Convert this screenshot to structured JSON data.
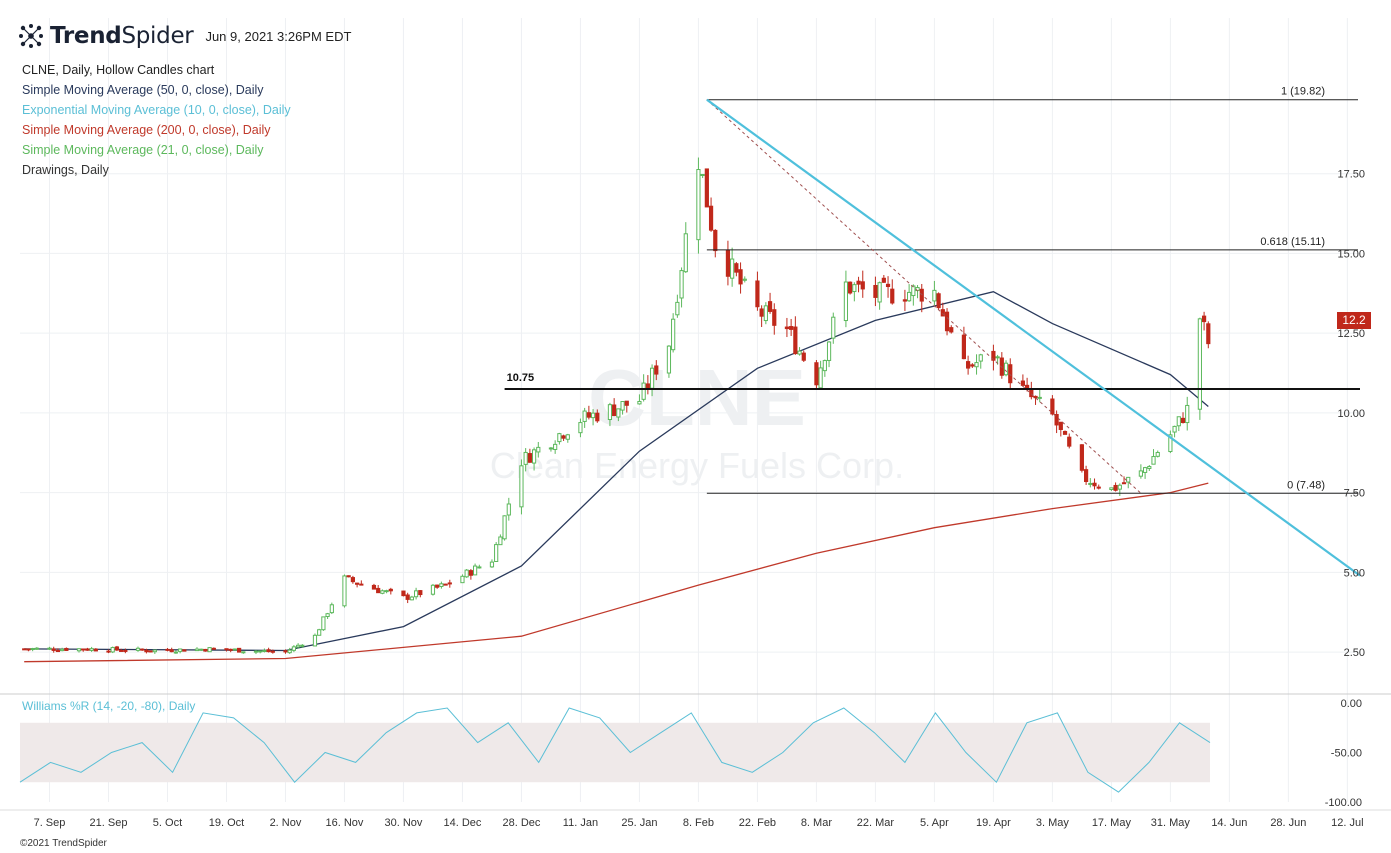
{
  "header": {
    "brand_bold": "Trend",
    "brand_light": "Spider",
    "datestamp": "Jun 9, 2021 3:26PM EDT"
  },
  "legend": [
    {
      "text": "CLNE, Daily, Hollow Candles chart",
      "color": "#222222"
    },
    {
      "text": "Simple Moving Average (50, 0, close), Daily",
      "color": "#2a3a5c"
    },
    {
      "text": "Exponential Moving Average (10, 0, close), Daily",
      "color": "#5bbfd6"
    },
    {
      "text": "Simple Moving Average (200, 0, close), Daily",
      "color": "#c0392b"
    },
    {
      "text": "Simple Moving Average (21, 0, close), Daily",
      "color": "#5cb85c"
    },
    {
      "text": "Drawings, Daily",
      "color": "#333333"
    }
  ],
  "watermark": {
    "ticker": "CLNE",
    "company": "Clean Energy Fuels Corp."
  },
  "price_badge": "12.2",
  "indicator_label": "Williams %R (14, -20, -80), Daily",
  "copyright": "©2021 TrendSpider",
  "colors": {
    "up": "#5cb85c",
    "down": "#c0281b",
    "sma50": "#2a3a5c",
    "ema10": "#5bbfd6",
    "sma200": "#c0392b",
    "sma21": "#5cb85c",
    "trendline": "#4fc0dc",
    "williams": "#5bbfd6"
  },
  "chart_data": [
    {
      "type": "candlestick",
      "title": "CLNE, Daily, Hollow Candles chart",
      "x_ticks": [
        "7. Sep",
        "21. Sep",
        "5. Oct",
        "19. Oct",
        "2. Nov",
        "16. Nov",
        "30. Nov",
        "14. Dec",
        "28. Dec",
        "11. Jan",
        "25. Jan",
        "8. Feb",
        "22. Feb",
        "8. Mar",
        "22. Mar",
        "5. Apr",
        "19. Apr",
        "3. May",
        "17. May",
        "31. May",
        "14. Jun",
        "28. Jun",
        "12. Jul"
      ],
      "y_ticks": [
        "2.50",
        "5.00",
        "7.50",
        "10.00",
        "12.50",
        "15.00",
        "17.50"
      ],
      "ylim": [
        1.25,
        20.5
      ],
      "series": [
        {
          "name": "CLNE close (approx.)",
          "x": [
            "2020-09-01",
            "2020-09-15",
            "2020-10-01",
            "2020-10-15",
            "2020-11-02",
            "2020-11-09",
            "2020-11-16",
            "2020-11-30",
            "2020-12-10",
            "2020-12-21",
            "2020-12-28",
            "2021-01-11",
            "2021-01-25",
            "2021-02-01",
            "2021-02-05",
            "2021-02-08",
            "2021-02-12",
            "2021-02-22",
            "2021-03-01",
            "2021-03-08",
            "2021-03-15",
            "2021-03-22",
            "2021-03-29",
            "2021-04-05",
            "2021-04-12",
            "2021-04-19",
            "2021-04-26",
            "2021-05-03",
            "2021-05-10",
            "2021-05-17",
            "2021-05-24",
            "2021-06-01",
            "2021-06-04",
            "2021-06-07",
            "2021-06-09"
          ],
          "values": [
            2.6,
            2.6,
            2.55,
            2.6,
            2.5,
            3.0,
            4.8,
            4.2,
            4.6,
            5.4,
            8.5,
            9.8,
            10.4,
            12.2,
            15.5,
            18.0,
            15.3,
            13.2,
            12.6,
            11.1,
            14.0,
            13.7,
            13.8,
            13.8,
            11.4,
            11.8,
            10.7,
            9.9,
            8.0,
            7.6,
            8.1,
            9.5,
            10.1,
            13.0,
            12.2
          ]
        },
        {
          "name": "SMA 50",
          "x": [
            "2020-09-01",
            "2020-11-02",
            "2020-11-30",
            "2020-12-28",
            "2021-01-25",
            "2021-02-22",
            "2021-03-22",
            "2021-04-19",
            "2021-05-03",
            "2021-05-31",
            "2021-06-09"
          ],
          "values": [
            2.6,
            2.55,
            3.3,
            5.2,
            8.8,
            11.4,
            12.9,
            13.8,
            12.8,
            11.2,
            10.2
          ]
        },
        {
          "name": "SMA 200",
          "x": [
            "2020-09-01",
            "2020-11-02",
            "2020-12-28",
            "2021-02-08",
            "2021-03-08",
            "2021-04-05",
            "2021-05-03",
            "2021-05-31",
            "2021-06-09"
          ],
          "values": [
            2.2,
            2.3,
            3.0,
            4.6,
            5.6,
            6.4,
            7.0,
            7.5,
            7.8
          ]
        },
        {
          "name": "Williams %R",
          "values": [
            -80,
            -60,
            -70,
            -50,
            -40,
            -70,
            -10,
            -15,
            -40,
            -80,
            -50,
            -60,
            -30,
            -10,
            -5,
            -40,
            -20,
            -60,
            -5,
            -15,
            -50,
            -30,
            -10,
            -60,
            -70,
            -50,
            -20,
            -5,
            -30,
            -60,
            -10,
            -50,
            -80,
            -20,
            -10,
            -70,
            -90,
            -60,
            -20,
            -40
          ]
        }
      ],
      "annotations": {
        "horizontal_level": "10.75",
        "fib_1": "1 (19.82)",
        "fib_618": "0.618 (15.11)",
        "fib_0": "0 (7.48)"
      },
      "indicator": {
        "name": "Williams %R (14, -20, -80), Daily",
        "y_ticks": [
          "0.00",
          "-50.00",
          "-100.00"
        ],
        "ylim": [
          -100,
          0
        ],
        "zone": [
          -80,
          -20
        ]
      }
    }
  ]
}
